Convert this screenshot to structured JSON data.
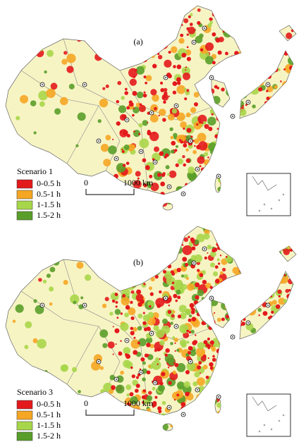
{
  "panels": [
    {
      "label": "(a)",
      "legend": {
        "title": "Scenario 1",
        "items": [
          {
            "label": "0-0.5 h",
            "color": "#e31a1c"
          },
          {
            "label": "0.5-1 h",
            "color": "#f5a623"
          },
          {
            "label": "1-1.5 h",
            "color": "#a8d64a"
          },
          {
            "label": "1.5-2 h",
            "color": "#5a9e2a"
          }
        ]
      },
      "scale": {
        "start": "0",
        "end": "1000 km"
      }
    },
    {
      "label": "(b)",
      "legend": {
        "title": "Scenario 3",
        "items": [
          {
            "label": "0-0.5 h",
            "color": "#e31a1c"
          },
          {
            "label": "0.5-1 h",
            "color": "#f5a623"
          },
          {
            "label": "1-1.5 h",
            "color": "#a8d64a"
          },
          {
            "label": "1.5-2 h",
            "color": "#5a9e2a"
          }
        ]
      },
      "scale": {
        "start": "0",
        "end": "1000 km"
      }
    }
  ]
}
